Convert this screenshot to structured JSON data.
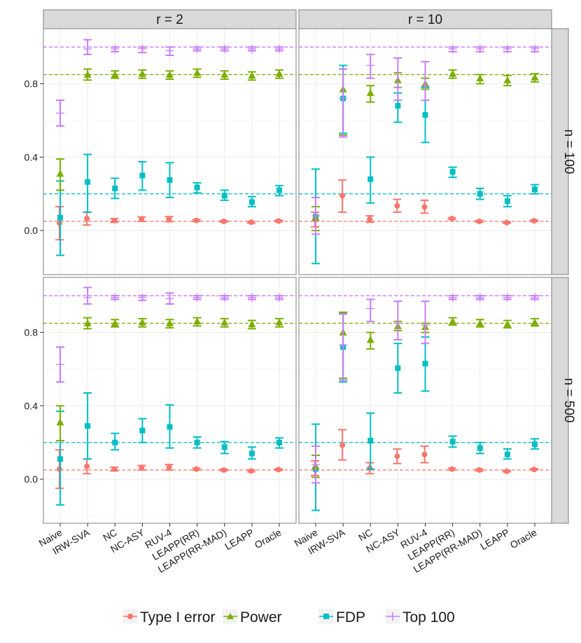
{
  "chart_data": {
    "type": "errorbar",
    "x_categories": [
      "Naive",
      "IRW-SVA",
      "NC",
      "NC-ASY",
      "RUV-4",
      "LEAPP(RR)",
      "LEAPP(RR-MAD)",
      "LEAPP",
      "Oracle"
    ],
    "col_strips": [
      "r = 2",
      "r = 10"
    ],
    "row_strips": [
      "n = 100",
      "n = 500"
    ],
    "ylim": [
      -0.24,
      1.1
    ],
    "yticks": [
      0.0,
      0.4,
      0.8
    ],
    "ytick_labels": [
      "0.0",
      "0.4",
      "0.8"
    ],
    "legend": {
      "position": "bottom",
      "items": [
        {
          "key": "type1",
          "label": "Type I error"
        },
        {
          "key": "power",
          "label": "Power"
        },
        {
          "key": "fdp",
          "label": "FDP"
        },
        {
          "key": "top100",
          "label": "Top 100"
        }
      ]
    },
    "colors": {
      "type1": "#F8766D",
      "power": "#7CAE00",
      "fdp": "#00BFC4",
      "top100": "#C77CFF",
      "strip_bg": "#D9D9D9",
      "strip_border": "#7F7F7F",
      "panel_border": "#7F7F7F",
      "grid": "#EBEBEB"
    },
    "reference_lines": [
      {
        "series": "type1",
        "y": 0.05
      },
      {
        "series": "power",
        "y": 0.85
      },
      {
        "series": "fdp",
        "y": 0.2
      },
      {
        "series": "top100",
        "y": 1.0
      }
    ],
    "panels": [
      {
        "row": 0,
        "col": 0,
        "series": {
          "type1": [
            [
              0.04,
              -0.05,
              0.13
            ],
            [
              0.065,
              0.03,
              0.1
            ],
            [
              0.055,
              0.045,
              0.065
            ],
            [
              0.062,
              0.05,
              0.074
            ],
            [
              0.062,
              0.048,
              0.076
            ],
            [
              0.055,
              0.05,
              0.06
            ],
            [
              0.05,
              0.046,
              0.054
            ],
            [
              0.045,
              0.04,
              0.05
            ],
            [
              0.052,
              0.048,
              0.056
            ]
          ],
          "power": [
            [
              0.31,
              0.22,
              0.39
            ],
            [
              0.85,
              0.82,
              0.88
            ],
            [
              0.85,
              0.83,
              0.87
            ],
            [
              0.855,
              0.83,
              0.875
            ],
            [
              0.85,
              0.825,
              0.87
            ],
            [
              0.86,
              0.835,
              0.88
            ],
            [
              0.85,
              0.825,
              0.87
            ],
            [
              0.845,
              0.82,
              0.865
            ],
            [
              0.855,
              0.83,
              0.875
            ]
          ],
          "fdp": [
            [
              0.07,
              -0.135,
              0.27
            ],
            [
              0.265,
              0.1,
              0.415
            ],
            [
              0.23,
              0.175,
              0.285
            ],
            [
              0.3,
              0.22,
              0.375
            ],
            [
              0.275,
              0.18,
              0.37
            ],
            [
              0.235,
              0.205,
              0.26
            ],
            [
              0.19,
              0.165,
              0.22
            ],
            [
              0.155,
              0.13,
              0.185
            ],
            [
              0.22,
              0.19,
              0.245
            ]
          ],
          "top100": [
            [
              0.64,
              0.57,
              0.71
            ],
            [
              0.99,
              0.96,
              1.04
            ],
            [
              0.99,
              0.975,
              1.0
            ],
            [
              0.99,
              0.97,
              1.0
            ],
            [
              0.98,
              0.955,
              1.0
            ],
            [
              0.99,
              0.98,
              1.0
            ],
            [
              0.99,
              0.98,
              1.0
            ],
            [
              0.99,
              0.98,
              1.0
            ],
            [
              0.99,
              0.98,
              1.0
            ]
          ]
        }
      },
      {
        "row": 0,
        "col": 1,
        "series": {
          "type1": [
            [
              0.06,
              0.02,
              0.1
            ],
            [
              0.19,
              0.1,
              0.275
            ],
            [
              0.062,
              0.045,
              0.08
            ],
            [
              0.135,
              0.1,
              0.17
            ],
            [
              0.128,
              0.095,
              0.165
            ],
            [
              0.065,
              0.06,
              0.07
            ],
            [
              0.05,
              0.045,
              0.055
            ],
            [
              0.043,
              0.04,
              0.047
            ],
            [
              0.053,
              0.05,
              0.057
            ]
          ],
          "power": [
            [
              0.07,
              0.0,
              0.13
            ],
            [
              0.77,
              0.52,
              0.88
            ],
            [
              0.75,
              0.7,
              0.79
            ],
            [
              0.82,
              0.78,
              0.86
            ],
            [
              0.8,
              0.77,
              0.83
            ],
            [
              0.855,
              0.83,
              0.875
            ],
            [
              0.83,
              0.8,
              0.85
            ],
            [
              0.82,
              0.79,
              0.845
            ],
            [
              0.835,
              0.81,
              0.855
            ]
          ],
          "fdp": [
            [
              0.075,
              -0.18,
              0.335
            ],
            [
              0.72,
              0.53,
              0.9
            ],
            [
              0.28,
              0.15,
              0.4
            ],
            [
              0.68,
              0.59,
              0.75
            ],
            [
              0.63,
              0.48,
              0.78
            ],
            [
              0.32,
              0.29,
              0.345
            ],
            [
              0.2,
              0.17,
              0.23
            ],
            [
              0.16,
              0.13,
              0.19
            ],
            [
              0.225,
              0.2,
              0.25
            ]
          ],
          "top100": [
            [
              0.08,
              -0.02,
              0.18
            ],
            [
              0.72,
              0.51,
              0.88
            ],
            [
              0.9,
              0.83,
              0.96
            ],
            [
              0.78,
              0.71,
              0.94
            ],
            [
              0.79,
              0.71,
              0.92
            ],
            [
              0.99,
              0.975,
              1.0
            ],
            [
              0.99,
              0.975,
              1.0
            ],
            [
              0.99,
              0.975,
              1.0
            ],
            [
              0.99,
              0.975,
              1.0
            ]
          ]
        }
      },
      {
        "row": 1,
        "col": 0,
        "series": {
          "type1": [
            [
              0.055,
              -0.05,
              0.16
            ],
            [
              0.07,
              0.03,
              0.11
            ],
            [
              0.055,
              0.045,
              0.065
            ],
            [
              0.063,
              0.05,
              0.075
            ],
            [
              0.065,
              0.05,
              0.08
            ],
            [
              0.055,
              0.05,
              0.06
            ],
            [
              0.05,
              0.046,
              0.054
            ],
            [
              0.045,
              0.04,
              0.05
            ],
            [
              0.052,
              0.048,
              0.056
            ]
          ],
          "power": [
            [
              0.31,
              0.21,
              0.4
            ],
            [
              0.85,
              0.82,
              0.88
            ],
            [
              0.85,
              0.83,
              0.87
            ],
            [
              0.855,
              0.83,
              0.875
            ],
            [
              0.85,
              0.825,
              0.87
            ],
            [
              0.86,
              0.835,
              0.88
            ],
            [
              0.855,
              0.83,
              0.875
            ],
            [
              0.845,
              0.82,
              0.865
            ],
            [
              0.855,
              0.83,
              0.875
            ]
          ],
          "fdp": [
            [
              0.11,
              -0.14,
              0.37
            ],
            [
              0.29,
              0.11,
              0.47
            ],
            [
              0.2,
              0.16,
              0.25
            ],
            [
              0.265,
              0.2,
              0.33
            ],
            [
              0.285,
              0.17,
              0.405
            ],
            [
              0.2,
              0.17,
              0.23
            ],
            [
              0.175,
              0.14,
              0.205
            ],
            [
              0.14,
              0.11,
              0.175
            ],
            [
              0.2,
              0.17,
              0.225
            ]
          ],
          "top100": [
            [
              0.625,
              0.53,
              0.72
            ],
            [
              0.99,
              0.955,
              1.045
            ],
            [
              0.99,
              0.98,
              1.0
            ],
            [
              0.99,
              0.975,
              1.0
            ],
            [
              0.985,
              0.955,
              1.015
            ],
            [
              0.99,
              0.98,
              1.0
            ],
            [
              0.99,
              0.98,
              1.0
            ],
            [
              0.99,
              0.98,
              1.0
            ],
            [
              0.99,
              0.98,
              1.0
            ]
          ]
        }
      },
      {
        "row": 1,
        "col": 1,
        "series": {
          "type1": [
            [
              0.06,
              0.02,
              0.1
            ],
            [
              0.185,
              0.105,
              0.27
            ],
            [
              0.06,
              0.03,
              0.09
            ],
            [
              0.125,
              0.085,
              0.165
            ],
            [
              0.135,
              0.09,
              0.18
            ],
            [
              0.055,
              0.05,
              0.06
            ],
            [
              0.05,
              0.045,
              0.055
            ],
            [
              0.043,
              0.04,
              0.047
            ],
            [
              0.053,
              0.05,
              0.057
            ]
          ],
          "power": [
            [
              0.07,
              0.01,
              0.13
            ],
            [
              0.8,
              0.55,
              0.91
            ],
            [
              0.76,
              0.71,
              0.8
            ],
            [
              0.835,
              0.81,
              0.86
            ],
            [
              0.83,
              0.8,
              0.85
            ],
            [
              0.86,
              0.84,
              0.88
            ],
            [
              0.85,
              0.83,
              0.87
            ],
            [
              0.845,
              0.825,
              0.865
            ],
            [
              0.855,
              0.835,
              0.875
            ]
          ],
          "fdp": [
            [
              0.055,
              -0.17,
              0.3
            ],
            [
              0.72,
              0.53,
              0.905
            ],
            [
              0.21,
              0.055,
              0.36
            ],
            [
              0.605,
              0.47,
              0.74
            ],
            [
              0.63,
              0.48,
              0.775
            ],
            [
              0.205,
              0.175,
              0.235
            ],
            [
              0.17,
              0.14,
              0.2
            ],
            [
              0.135,
              0.11,
              0.165
            ],
            [
              0.19,
              0.165,
              0.22
            ]
          ],
          "top100": [
            [
              0.08,
              -0.02,
              0.18
            ],
            [
              0.73,
              0.54,
              0.9
            ],
            [
              0.93,
              0.86,
              0.98
            ],
            [
              0.85,
              0.76,
              0.97
            ],
            [
              0.84,
              0.74,
              0.97
            ],
            [
              0.99,
              0.98,
              1.0
            ],
            [
              0.99,
              0.98,
              1.0
            ],
            [
              0.99,
              0.98,
              1.0
            ],
            [
              0.99,
              0.98,
              1.0
            ]
          ]
        }
      }
    ]
  }
}
